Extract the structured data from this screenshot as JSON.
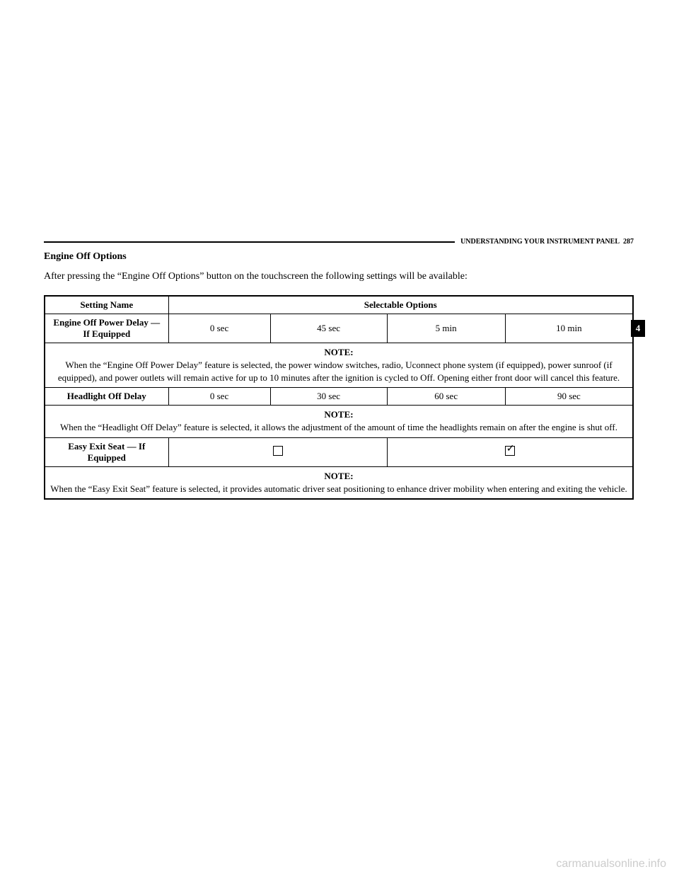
{
  "header": {
    "section": "UNDERSTANDING YOUR INSTRUMENT PANEL",
    "page_num": "287"
  },
  "section_title": "Engine Off Options",
  "intro": "After pressing the “Engine Off Options” button on the touchscreen the following settings will be available:",
  "table": {
    "header_setting": "Setting Name",
    "header_options": "Selectable Options",
    "rows": {
      "engine_off_power": {
        "name": "Engine Off Power Delay — If Equipped",
        "opts": [
          "0 sec",
          "45 sec",
          "5 min",
          "10 min"
        ]
      },
      "note1_label": "NOTE:",
      "note1_text": "When the “Engine Off Power Delay” feature is selected, the power window switches, radio, Uconnect phone system (if equipped), power sunroof (if equipped), and power outlets will remain active for up to 10 minutes after the ignition is cycled to Off. Opening either front door will cancel this feature.",
      "headlight_off": {
        "name": "Headlight Off Delay",
        "opts": [
          "0 sec",
          "30 sec",
          "60 sec",
          "90 sec"
        ]
      },
      "note2_label": "NOTE:",
      "note2_text": "When the “Headlight Off Delay” feature is selected, it allows the adjustment of the amount of time the headlights remain on after the engine is shut off.",
      "easy_exit": {
        "name": "Easy Exit Seat — If Equipped"
      },
      "note3_label": "NOTE:",
      "note3_text": "When the “Easy Exit Seat” feature is selected, it provides automatic driver seat positioning to enhance driver mobility when entering and exiting the vehicle."
    }
  },
  "tab": "4",
  "watermark": "carmanualsonline.info"
}
